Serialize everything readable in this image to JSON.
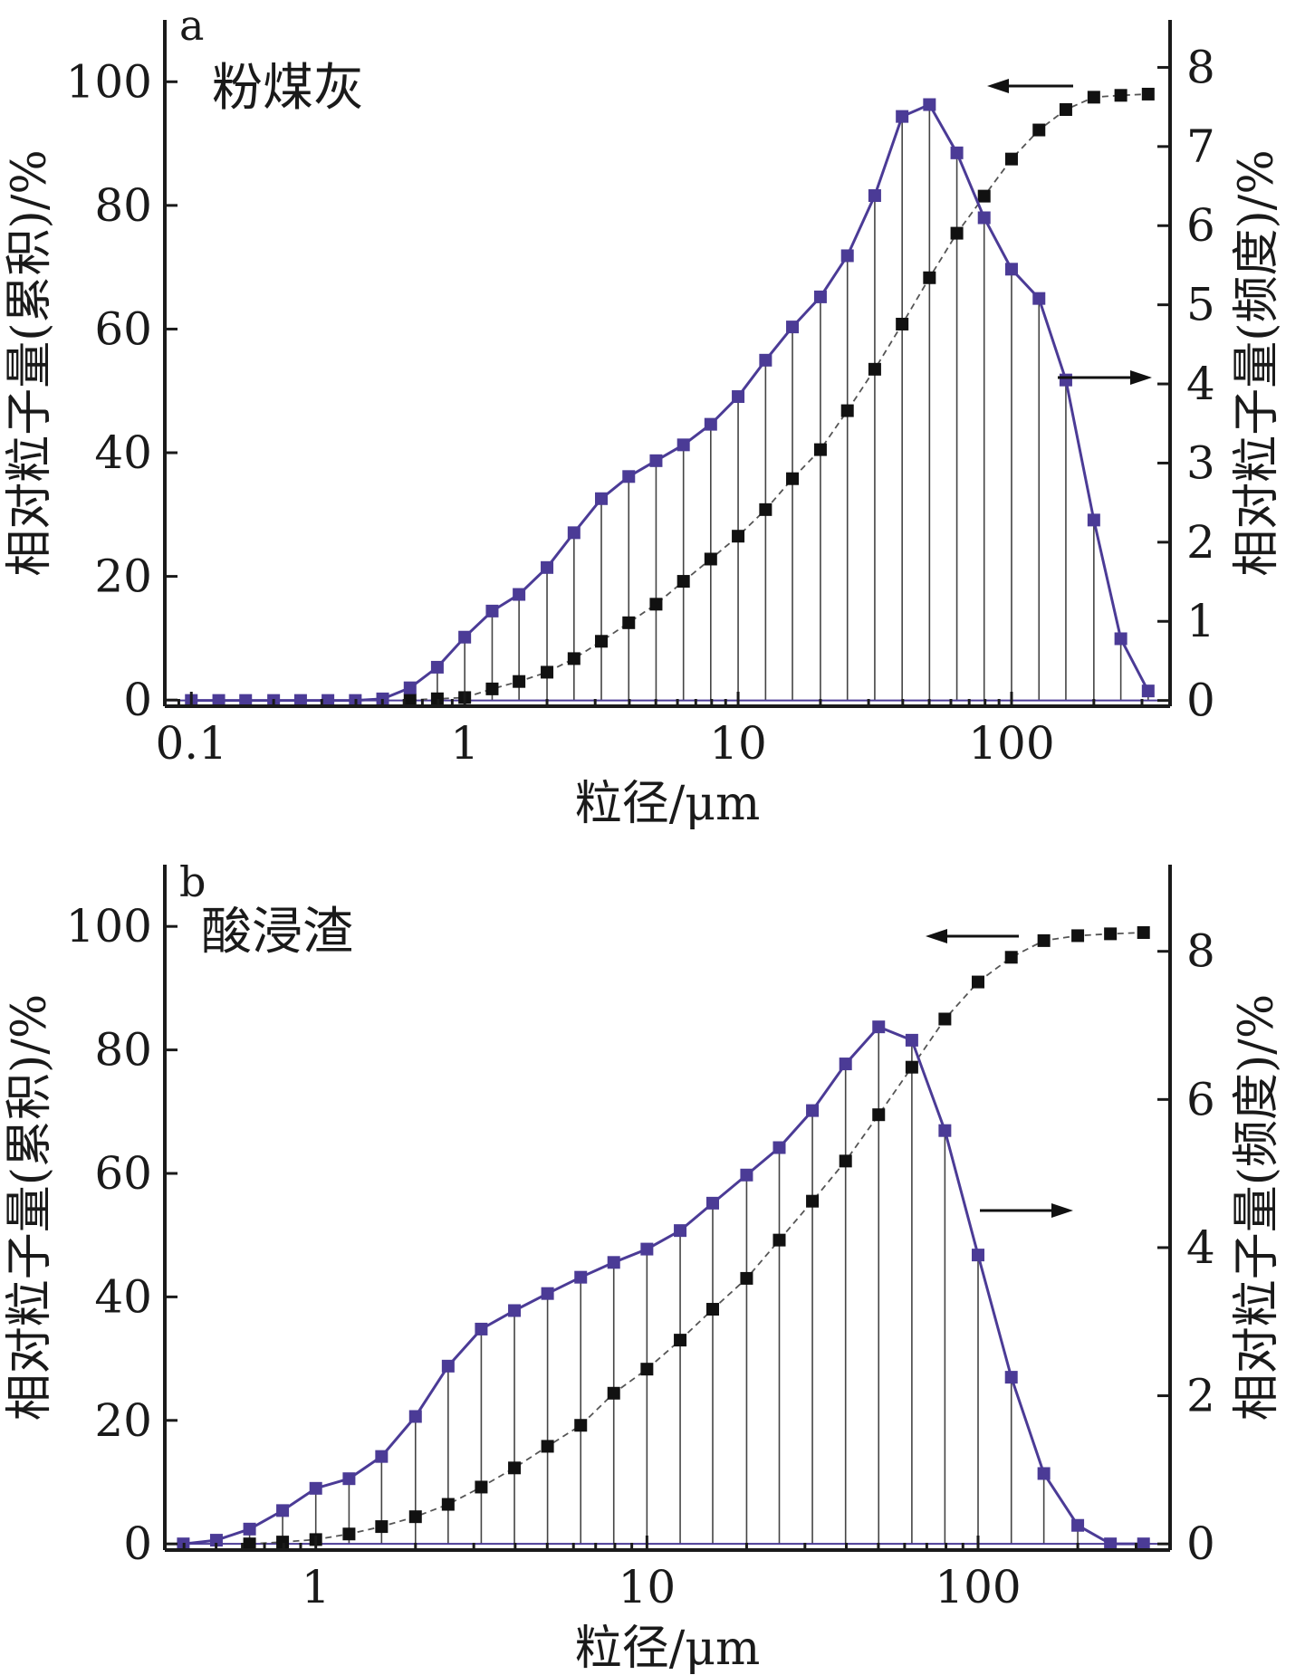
{
  "chart_data": [
    {
      "type": "line",
      "panel_letter": "a",
      "sample_name": "粉煤灰",
      "xlabel": "粒径/μm",
      "ylabel_left": "相对粒子量(累积)/%",
      "ylabel_right": "相对粒子量(频度)/%",
      "x_scale": "log",
      "xlim": [
        0.08,
        380
      ],
      "ylim_left": [
        -1,
        110
      ],
      "ylim_right": [
        -0.0727,
        8.6
      ],
      "x_ticks": [
        0.1,
        1,
        10,
        100
      ],
      "x_tick_labels": [
        "0.1",
        "1",
        "10",
        "100"
      ],
      "y_ticks_left": [
        0,
        20,
        40,
        60,
        80,
        100
      ],
      "y_tick_labels_left": [
        "0",
        "20",
        "40",
        "60",
        "80",
        "100"
      ],
      "y_ticks_right": [
        0,
        1,
        2,
        3,
        4,
        5,
        6,
        7,
        8
      ],
      "y_tick_labels_right": [
        "0",
        "1",
        "2",
        "3",
        "4",
        "5",
        "6",
        "7",
        "8"
      ],
      "frequency_series": {
        "axis": "right",
        "color": "#4b3b96",
        "x": [
          0.1,
          0.126,
          0.158,
          0.2,
          0.251,
          0.316,
          0.398,
          0.501,
          0.631,
          0.794,
          1.0,
          1.26,
          1.58,
          2.0,
          2.51,
          3.16,
          3.98,
          5.01,
          6.31,
          7.94,
          10.0,
          12.6,
          15.8,
          20.0,
          25.1,
          31.6,
          39.8,
          50.1,
          63.1,
          79.4,
          100,
          126,
          158,
          200,
          251,
          316
        ],
        "y": [
          0.0,
          0.0,
          0.0,
          0.0,
          0.0,
          0.0,
          0.0,
          0.02,
          0.16,
          0.42,
          0.8,
          1.13,
          1.34,
          1.68,
          2.12,
          2.55,
          2.83,
          3.03,
          3.23,
          3.49,
          3.84,
          4.3,
          4.72,
          5.1,
          5.62,
          6.38,
          7.38,
          7.53,
          6.92,
          6.1,
          5.45,
          5.08,
          4.05,
          2.28,
          0.78,
          0.12
        ]
      },
      "cumulative_series": {
        "axis": "left",
        "color": "#111111",
        "x": [
          0.631,
          0.794,
          1.0,
          1.26,
          1.58,
          2.0,
          2.51,
          3.16,
          3.98,
          5.01,
          6.31,
          7.94,
          10.0,
          12.6,
          15.8,
          20.0,
          25.1,
          31.6,
          39.8,
          50.1,
          63.1,
          79.4,
          100,
          126,
          158,
          200,
          251,
          316
        ],
        "y": [
          0.0,
          0.2,
          0.4,
          1.8,
          3.0,
          4.5,
          6.7,
          9.5,
          12.5,
          15.5,
          19.2,
          22.8,
          26.5,
          30.8,
          35.8,
          40.5,
          46.8,
          53.5,
          60.8,
          68.3,
          75.5,
          81.5,
          87.5,
          92.2,
          95.5,
          97.5,
          97.8,
          98.0
        ]
      },
      "annotations": [
        {
          "text": "←",
          "meaning": "cumulative curve reads on left axis",
          "direction": "left"
        },
        {
          "text": "→",
          "meaning": "frequency curve reads on right axis",
          "direction": "right"
        }
      ],
      "grid": false
    },
    {
      "type": "line",
      "panel_letter": "b",
      "sample_name": "酸浸渣",
      "xlabel": "粒径/μm",
      "ylabel_left": "相对粒子量(累积)/%",
      "ylabel_right": "相对粒子量(频度)/%",
      "x_scale": "log",
      "xlim": [
        0.35,
        380
      ],
      "ylim_left": [
        -1,
        110
      ],
      "ylim_right": [
        -0.0833,
        9.17
      ],
      "x_ticks": [
        1,
        10,
        100
      ],
      "x_tick_labels": [
        "1",
        "10",
        "100"
      ],
      "y_ticks_left": [
        0,
        20,
        40,
        60,
        80,
        100
      ],
      "y_tick_labels_left": [
        "0",
        "20",
        "40",
        "60",
        "80",
        "100"
      ],
      "y_ticks_right": [
        0,
        2,
        4,
        6,
        8
      ],
      "y_tick_labels_right": [
        "0",
        "2",
        "4",
        "6",
        "8"
      ],
      "frequency_series": {
        "axis": "right",
        "color": "#4b3b96",
        "x": [
          0.398,
          0.501,
          0.631,
          0.794,
          1.0,
          1.26,
          1.58,
          2.0,
          2.51,
          3.16,
          3.98,
          5.01,
          6.31,
          7.94,
          10.0,
          12.6,
          15.8,
          20.0,
          25.1,
          31.6,
          39.8,
          50.1,
          63.1,
          79.4,
          100,
          126,
          158,
          200,
          251,
          316
        ],
        "y": [
          0.0,
          0.05,
          0.2,
          0.45,
          0.75,
          0.88,
          1.18,
          1.72,
          2.4,
          2.9,
          3.15,
          3.38,
          3.6,
          3.8,
          3.98,
          4.23,
          4.6,
          4.98,
          5.35,
          5.85,
          6.48,
          6.98,
          6.8,
          5.58,
          3.9,
          2.25,
          0.95,
          0.25,
          0.0,
          0.0
        ]
      },
      "cumulative_series": {
        "axis": "left",
        "color": "#111111",
        "x": [
          0.631,
          0.794,
          1.0,
          1.26,
          1.58,
          2.0,
          2.51,
          3.16,
          3.98,
          5.01,
          6.31,
          7.94,
          10.0,
          12.6,
          15.8,
          20.0,
          25.1,
          31.6,
          39.8,
          50.1,
          63.1,
          79.4,
          100,
          126,
          158,
          200,
          251,
          316
        ],
        "y": [
          0.0,
          0.3,
          0.7,
          1.6,
          2.8,
          4.4,
          6.4,
          9.2,
          12.3,
          15.8,
          19.2,
          24.4,
          28.3,
          33.0,
          38.0,
          43.0,
          49.2,
          55.5,
          62.0,
          69.5,
          77.2,
          85.0,
          91.0,
          95.0,
          97.7,
          98.5,
          98.8,
          99.0
        ]
      },
      "annotations": [
        {
          "text": "←",
          "meaning": "cumulative curve reads on left axis",
          "direction": "left"
        },
        {
          "text": "→",
          "meaning": "frequency curve reads on right axis",
          "direction": "right"
        }
      ],
      "grid": false
    }
  ]
}
